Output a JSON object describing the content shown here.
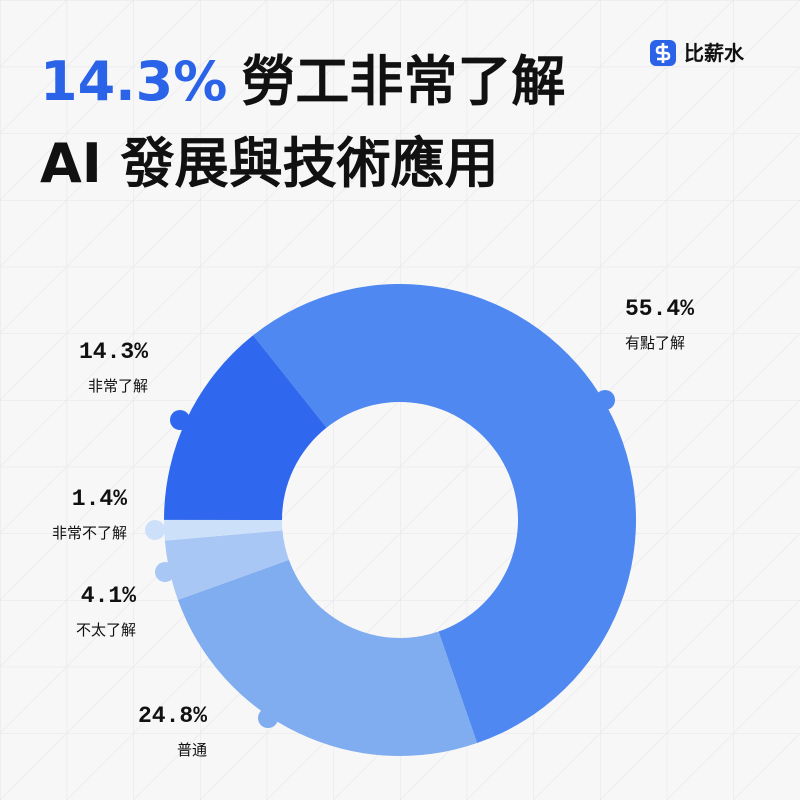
{
  "chart_data": {
    "type": "donut",
    "title_highlight": "14.3%",
    "title_line1": "勞工非常了解",
    "title_line2": "AI 發展與技術應用",
    "brand": "比薪水",
    "categories": [
      "有點了解",
      "普通",
      "不太了解",
      "非常不了解",
      "非常了解"
    ],
    "values": [
      55.4,
      24.8,
      4.1,
      1.4,
      14.3
    ],
    "value_labels": [
      "55.4%",
      "24.8%",
      "4.1%",
      "1.4%",
      "14.3%"
    ],
    "colors": [
      "#4f88f0",
      "#80acf0",
      "#a9c7f5",
      "#cde0fa",
      "#2f68ee"
    ]
  }
}
